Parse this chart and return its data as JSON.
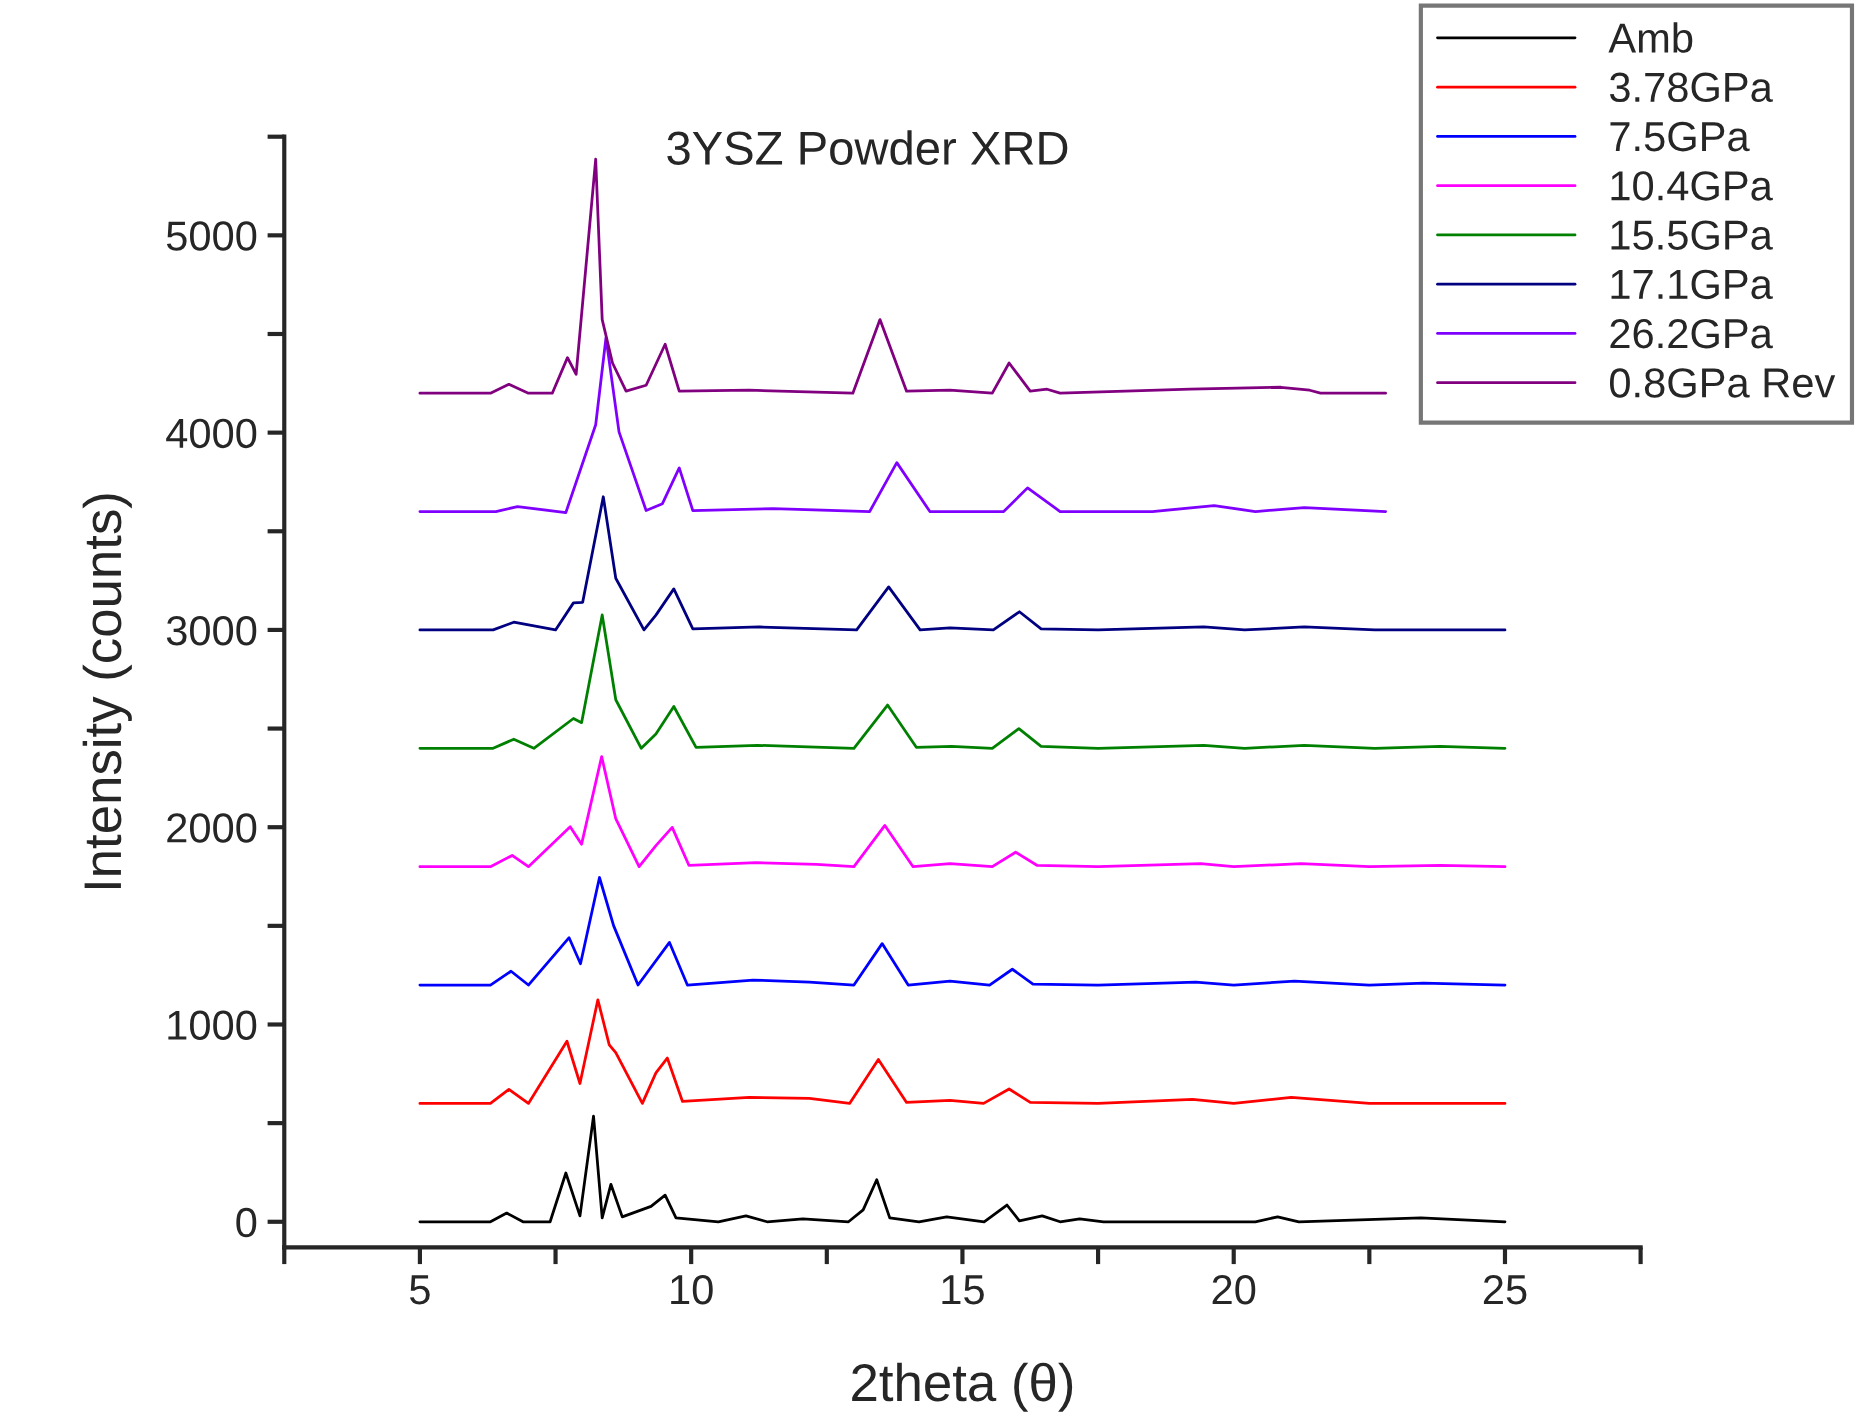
{
  "chart_data": {
    "type": "line",
    "title": "3YSZ Powder XRD",
    "xlabel": "2theta (θ)",
    "ylabel": "Intensity (counts)",
    "xlim": [
      2.5,
      27.5
    ],
    "xticks": [
      {
        "value": 2.5,
        "label": null
      },
      5,
      {
        "value": 7.5,
        "label": null
      },
      10,
      {
        "value": 12.5,
        "label": null
      },
      15,
      {
        "value": 17.5,
        "label": null
      },
      20,
      {
        "value": 22.5,
        "label": null
      },
      25,
      {
        "value": 27.5,
        "label": null
      }
    ],
    "ylim": [
      -130,
      5500
    ],
    "yticks": [
      0,
      {
        "value": 500,
        "label": null
      },
      1000,
      {
        "value": 1500,
        "label": null
      },
      2000,
      {
        "value": 2500,
        "label": null
      },
      3000,
      {
        "value": 3500,
        "label": null
      },
      4000,
      {
        "value": 4500,
        "label": null
      },
      5000,
      {
        "value": 5500,
        "label": null
      }
    ],
    "grid": false,
    "legend": "top right",
    "marker": "none",
    "line_style": "solid",
    "series": [
      {
        "name": "Amb",
        "color": "#000000",
        "x": [
          5,
          6.3,
          6.6,
          6.9,
          7.4,
          7.69,
          7.95,
          8.2,
          8.36,
          8.52,
          8.73,
          9.26,
          9.52,
          9.72,
          10.5,
          11.01,
          11.4,
          12.06,
          12.9,
          13.17,
          13.42,
          13.66,
          14.2,
          14.71,
          15.4,
          15.82,
          16.05,
          16.47,
          16.8,
          17.16,
          17.6,
          20.4,
          20.81,
          21.2,
          23.45,
          25
        ],
        "values": [
          0,
          0,
          44,
          0,
          0,
          247,
          30,
          535,
          20,
          190,
          25,
          78,
          135,
          20,
          0,
          30,
          0,
          15,
          0,
          60,
          213,
          20,
          0,
          25,
          0,
          85,
          5,
          30,
          0,
          15,
          0,
          0,
          25,
          0,
          20,
          0
        ]
      },
      {
        "name": "3.78GPa",
        "color": "#ff0000",
        "x": [
          5,
          6.3,
          6.64,
          7.0,
          7.71,
          7.95,
          8.28,
          8.49,
          8.61,
          9.1,
          9.35,
          9.56,
          9.84,
          11.07,
          12.18,
          12.92,
          13.45,
          13.97,
          14.77,
          15.39,
          15.86,
          16.25,
          17.5,
          19.24,
          20.0,
          21.06,
          22.5,
          25
        ],
        "values": [
          600,
          600,
          671,
          600,
          915,
          701,
          1125,
          897,
          857,
          600,
          755,
          830,
          610,
          630,
          625,
          600,
          823,
          605,
          615,
          600,
          673,
          605,
          600,
          620,
          600,
          630,
          600,
          600
        ]
      },
      {
        "name": "7.5GPa",
        "color": "#0000ff",
        "x": [
          5,
          6.3,
          6.68,
          7.0,
          7.75,
          7.96,
          8.31,
          8.57,
          9.02,
          9.6,
          9.93,
          11.14,
          12.18,
          13.0,
          13.52,
          14.0,
          14.77,
          15.5,
          15.92,
          16.3,
          17.5,
          19.3,
          20.0,
          21.12,
          22.5,
          23.5,
          25
        ],
        "values": [
          1200,
          1200,
          1270,
          1200,
          1440,
          1308,
          1745,
          1501,
          1200,
          1416,
          1200,
          1225,
          1215,
          1200,
          1410,
          1200,
          1220,
          1200,
          1280,
          1205,
          1200,
          1215,
          1200,
          1220,
          1200,
          1210,
          1200
        ]
      },
      {
        "name": "10.4GPa",
        "color": "#ff00ff",
        "x": [
          5,
          6.3,
          6.7,
          7.0,
          7.77,
          7.98,
          8.35,
          8.61,
          9.04,
          9.35,
          9.65,
          9.96,
          11.2,
          12.31,
          13.0,
          13.57,
          14.09,
          14.77,
          15.55,
          15.98,
          16.38,
          17.5,
          19.39,
          20.0,
          21.24,
          22.5,
          23.8,
          25
        ],
        "values": [
          1800,
          1800,
          1857,
          1800,
          2002,
          1914,
          2358,
          2043,
          1800,
          1907,
          1999,
          1806,
          1820,
          1812,
          1800,
          2009,
          1800,
          1815,
          1800,
          1873,
          1806,
          1800,
          1815,
          1800,
          1815,
          1800,
          1806,
          1800
        ]
      },
      {
        "name": "15.5GPa",
        "color": "#008000",
        "x": [
          5,
          6.35,
          6.73,
          7.1,
          7.83,
          7.98,
          8.36,
          8.61,
          9.08,
          9.35,
          9.68,
          10.09,
          11.22,
          13.0,
          13.62,
          14.15,
          14.8,
          15.55,
          16.04,
          16.45,
          17.5,
          19.45,
          20.2,
          21.3,
          22.6,
          23.8,
          25
        ],
        "values": [
          2400,
          2400,
          2446,
          2400,
          2551,
          2530,
          3076,
          2646,
          2400,
          2473,
          2612,
          2405,
          2415,
          2400,
          2619,
          2405,
          2410,
          2400,
          2500,
          2410,
          2400,
          2415,
          2400,
          2415,
          2400,
          2410,
          2400
        ]
      },
      {
        "name": "17.1GPa",
        "color": "#000080",
        "x": [
          5,
          6.35,
          6.73,
          7.5,
          7.83,
          8.0,
          8.38,
          8.61,
          9.13,
          9.35,
          9.68,
          10.03,
          11.26,
          13.05,
          13.64,
          14.22,
          14.77,
          15.57,
          16.05,
          16.45,
          17.5,
          19.45,
          20.2,
          21.3,
          22.6,
          23.8,
          25
        ],
        "values": [
          3000,
          3000,
          3039,
          3000,
          3137,
          3140,
          3675,
          3262,
          3000,
          3075,
          3208,
          3005,
          3015,
          3000,
          3218,
          3000,
          3010,
          3000,
          3092,
          3005,
          3000,
          3015,
          3000,
          3015,
          3000,
          3000,
          3000
        ]
      },
      {
        "name": "26.2GPa",
        "color": "#8000ff",
        "x": [
          5,
          6.4,
          6.8,
          7.69,
          8.24,
          8.43,
          8.67,
          9.17,
          9.47,
          9.78,
          10.03,
          11.51,
          13.29,
          13.79,
          14.4,
          15.76,
          16.2,
          16.8,
          18.5,
          19.64,
          20.4,
          21.3,
          22.8
        ],
        "values": [
          3600,
          3600,
          3625,
          3595,
          4040,
          4481,
          4004,
          3605,
          3640,
          3821,
          3605,
          3615,
          3600,
          3848,
          3600,
          3600,
          3720,
          3600,
          3600,
          3630,
          3600,
          3620,
          3600
        ]
      },
      {
        "name": "0.8GPa Rev",
        "color": "#800080",
        "x": [
          5,
          6.3,
          6.64,
          7.0,
          7.44,
          7.72,
          7.88,
          8.24,
          8.36,
          8.55,
          8.8,
          9.17,
          9.52,
          9.78,
          11.07,
          12.98,
          13.48,
          13.97,
          14.77,
          15.55,
          15.86,
          16.25,
          16.56,
          16.8,
          19.2,
          20.87,
          21.4,
          21.6,
          22.8
        ],
        "values": [
          4200,
          4200,
          4245,
          4200,
          4200,
          4380,
          4296,
          5386,
          4573,
          4353,
          4210,
          4240,
          4448,
          4210,
          4215,
          4200,
          4573,
          4210,
          4215,
          4200,
          4353,
          4210,
          4220,
          4200,
          4220,
          4230,
          4215,
          4200,
          4200
        ]
      }
    ]
  }
}
